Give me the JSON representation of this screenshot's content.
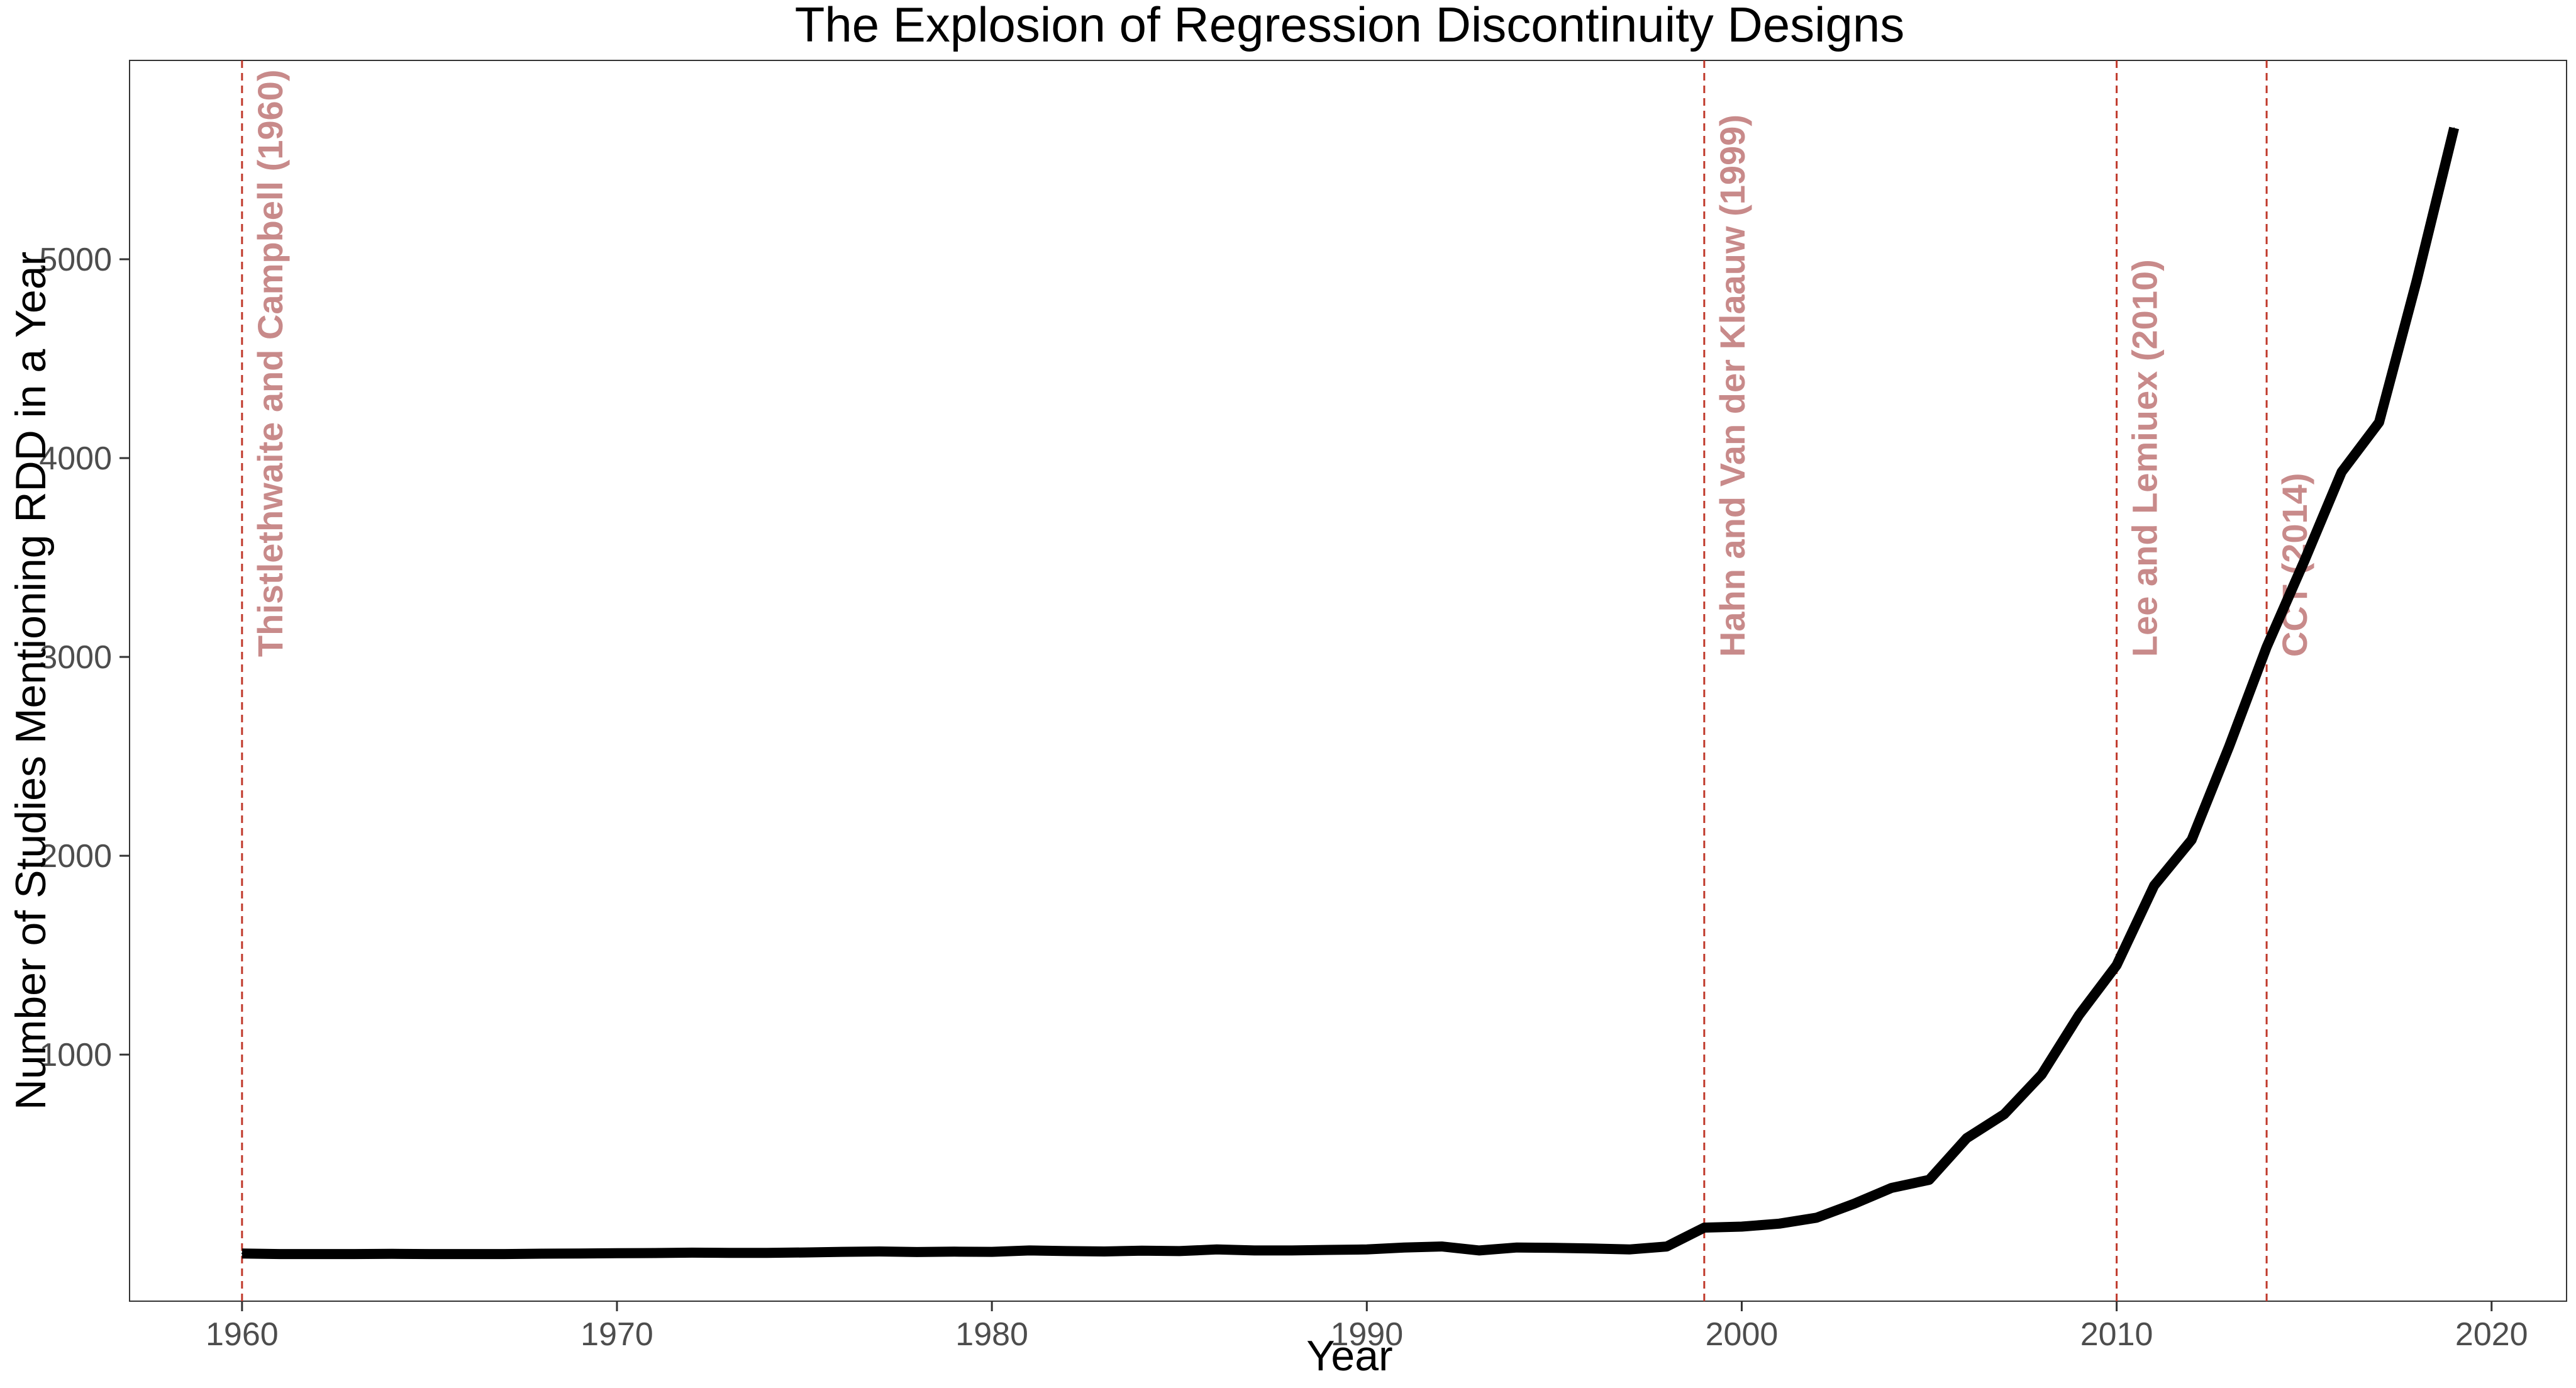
{
  "chart_data": {
    "type": "line",
    "title": "The Explosion of Regression Discontinuity Designs",
    "xlabel": "Year",
    "ylabel": "Number of Studies Mentioning RDD in a Year",
    "xlim": [
      1957,
      2022
    ],
    "ylim": [
      -240,
      6000
    ],
    "x_ticks": [
      1960,
      1970,
      1980,
      1990,
      2000,
      2010,
      2020
    ],
    "y_ticks": [
      1000,
      2000,
      3000,
      4000,
      5000
    ],
    "grid": false,
    "line_color": "#000000",
    "annotation_color": "#c0392b",
    "annotation_text_color": "#c88a8a",
    "series": [
      {
        "x": [
          1960,
          1961,
          1962,
          1963,
          1964,
          1965,
          1966,
          1967,
          1968,
          1969,
          1970,
          1971,
          1972,
          1973,
          1974,
          1975,
          1976,
          1977,
          1978,
          1979,
          1980,
          1981,
          1982,
          1983,
          1984,
          1985,
          1986,
          1987,
          1988,
          1989,
          1990,
          1991,
          1992,
          1993,
          1994,
          1995,
          1996,
          1997,
          1998,
          1999,
          2000,
          2001,
          2002,
          2003,
          2004,
          2005,
          2006,
          2007,
          2008,
          2009,
          2010,
          2011,
          2012,
          2013,
          2014,
          2015,
          2016,
          2017,
          2018,
          2019
        ],
        "values": [
          0,
          -3,
          -3,
          -3,
          -2,
          -3,
          -3,
          -3,
          -1,
          0,
          1,
          2,
          4,
          3,
          3,
          5,
          8,
          10,
          7,
          9,
          8,
          15,
          12,
          10,
          14,
          12,
          20,
          15,
          15,
          18,
          20,
          30,
          35,
          15,
          30,
          28,
          25,
          20,
          35,
          130,
          135,
          150,
          180,
          250,
          330,
          370,
          580,
          700,
          900,
          1200,
          1450,
          1850,
          2080,
          2550,
          3050,
          3480,
          3930,
          4180,
          4890,
          5660
        ]
      }
    ],
    "vlines": [
      {
        "x": 1960,
        "label": "Thistlethwaite and Campbell (1960)"
      },
      {
        "x": 1999,
        "label": "Hahn and Van der Klaauw (1999)"
      },
      {
        "x": 2010,
        "label": "Lee and Lemiuex (2010)"
      },
      {
        "x": 2014,
        "label": "CCT (2014)"
      }
    ]
  }
}
